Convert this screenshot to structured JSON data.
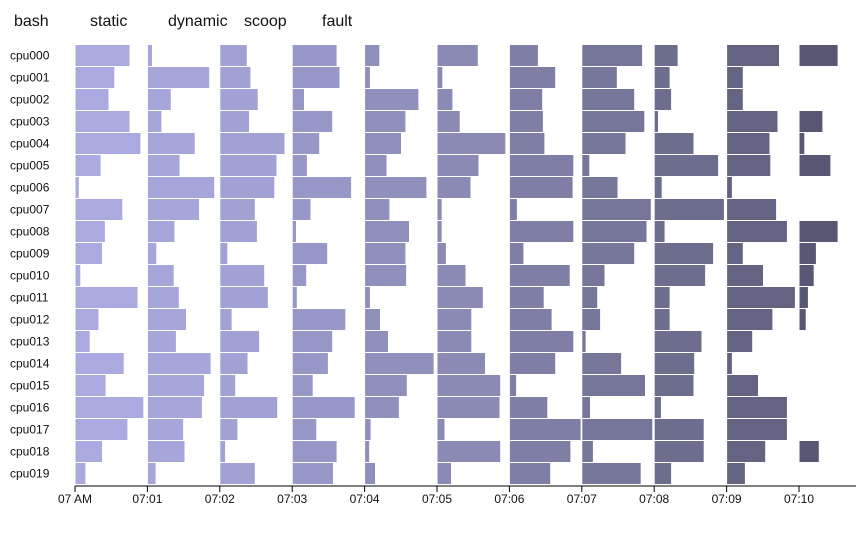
{
  "chart_data": {
    "type": "bar",
    "title": "",
    "xlabel": "",
    "ylabel": "",
    "legend_position": "top-left",
    "legend": [
      "bash",
      "static",
      "dynamic",
      "scoop",
      "fault"
    ],
    "x_ticks": [
      "07 AM",
      "07:01",
      "07:02",
      "07:03",
      "07:04",
      "07:05",
      "07:06",
      "07:07",
      "07:08",
      "07:09",
      "07:10"
    ],
    "xlim": [
      0,
      10.9
    ],
    "x_unit": "minutes",
    "categories": [
      "cpu000",
      "cpu001",
      "cpu002",
      "cpu003",
      "cpu004",
      "cpu005",
      "cpu006",
      "cpu007",
      "cpu008",
      "cpu009",
      "cpu010",
      "cpu011",
      "cpu012",
      "cpu013",
      "cpu014",
      "cpu015",
      "cpu016",
      "cpu017",
      "cpu018",
      "cpu019"
    ],
    "slot_colors": [
      "#aaaae0",
      "#a6a6db",
      "#a1a1d4",
      "#9898c8",
      "#9090bc",
      "#8a8ab4",
      "#7f7fa6",
      "#76769a",
      "#6d6d8e",
      "#646482",
      "#585874"
    ],
    "row_values": [
      [
        0.76,
        0.07,
        0.38,
        0.62,
        0.21,
        0.57,
        0.4,
        0.84,
        0.33,
        0.73,
        0.54
      ],
      [
        0.55,
        0.86,
        0.43,
        0.66,
        0.08,
        0.08,
        0.64,
        0.49,
        0.22,
        0.23,
        0
      ],
      [
        0.47,
        0.33,
        0.53,
        0.17,
        0.75,
        0.22,
        0.46,
        0.73,
        0.24,
        0.23,
        0
      ],
      [
        0.76,
        0.2,
        0.41,
        0.56,
        0.57,
        0.32,
        0.47,
        0.87,
        0.06,
        0.71,
        0.33
      ],
      [
        0.91,
        0.66,
        0.9,
        0.38,
        0.51,
        0.95,
        0.49,
        0.61,
        0.55,
        0.6,
        0.08
      ],
      [
        0.36,
        0.45,
        0.79,
        0.21,
        0.31,
        0.58,
        0.89,
        0.11,
        0.89,
        0.61,
        0.44
      ],
      [
        0.06,
        0.93,
        0.76,
        0.82,
        0.86,
        0.47,
        0.88,
        0.5,
        0.11,
        0.08,
        0
      ],
      [
        0.66,
        0.72,
        0.49,
        0.26,
        0.35,
        0.07,
        0.11,
        0.96,
        0.97,
        0.69,
        0
      ],
      [
        0.42,
        0.38,
        0.52,
        0.06,
        0.62,
        0.07,
        0.89,
        0.9,
        0.15,
        0.84,
        0.54
      ],
      [
        0.38,
        0.13,
        0.11,
        0.49,
        0.57,
        0.13,
        0.2,
        0.73,
        0.82,
        0.23,
        0.24
      ],
      [
        0.08,
        0.37,
        0.62,
        0.2,
        0.58,
        0.4,
        0.84,
        0.32,
        0.71,
        0.51,
        0.21
      ],
      [
        0.87,
        0.44,
        0.67,
        0.07,
        0.08,
        0.64,
        0.48,
        0.22,
        0.22,
        0.95,
        0.13
      ],
      [
        0.33,
        0.54,
        0.17,
        0.74,
        0.22,
        0.48,
        0.59,
        0.26,
        0.22,
        0.64,
        0.1
      ],
      [
        0.21,
        0.4,
        0.55,
        0.56,
        0.33,
        0.48,
        0.89,
        0.06,
        0.66,
        0.36,
        0
      ],
      [
        0.68,
        0.88,
        0.39,
        0.5,
        0.96,
        0.67,
        0.64,
        0.55,
        0.56,
        0.08,
        0
      ],
      [
        0.43,
        0.79,
        0.22,
        0.29,
        0.59,
        0.88,
        0.1,
        0.88,
        0.55,
        0.44,
        0
      ],
      [
        0.95,
        0.76,
        0.8,
        0.87,
        0.48,
        0.87,
        0.53,
        0.12,
        0.1,
        0.84,
        0
      ],
      [
        0.73,
        0.5,
        0.25,
        0.34,
        0.09,
        0.11,
        0.99,
        0.98,
        0.69,
        0.84,
        0
      ],
      [
        0.38,
        0.52,
        0.08,
        0.62,
        0.07,
        0.88,
        0.85,
        0.16,
        0.69,
        0.54,
        0.28
      ],
      [
        0.15,
        0.12,
        0.49,
        0.57,
        0.15,
        0.2,
        0.57,
        0.82,
        0.24,
        0.26,
        0
      ]
    ]
  }
}
